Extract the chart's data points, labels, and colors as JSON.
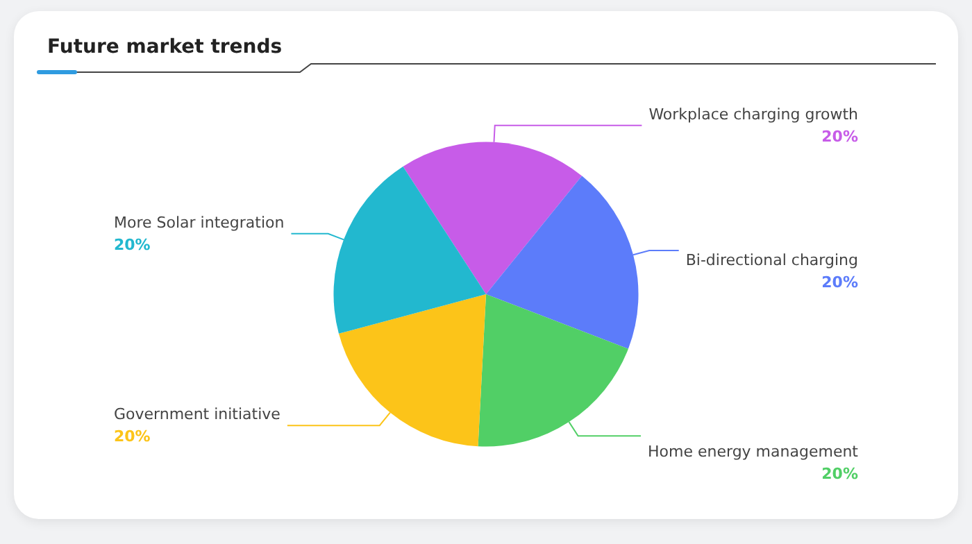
{
  "chart_data": {
    "type": "pie",
    "title": "Future market trends",
    "categories": [
      "Workplace charging growth",
      "Bi-directional charging",
      "Home energy management",
      "Government initiative",
      "More Solar integration"
    ],
    "values": [
      20,
      20,
      20,
      20,
      20
    ],
    "value_labels": [
      "20%",
      "20%",
      "20%",
      "20%",
      "20%"
    ],
    "colors": [
      "#c75ce8",
      "#5c7cfa",
      "#51cf66",
      "#fcc419",
      "#22b8cf"
    ],
    "legend": false
  }
}
